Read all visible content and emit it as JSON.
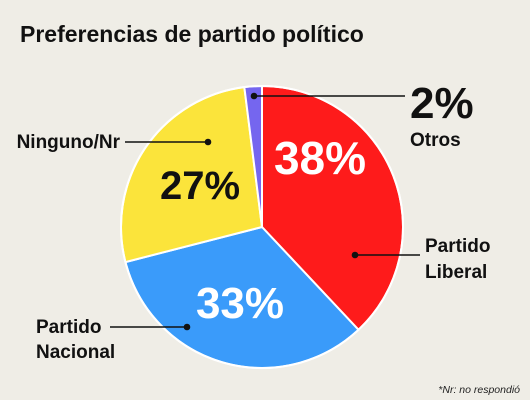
{
  "chart_data": {
    "type": "pie",
    "title": "Preferencias de partido político",
    "slices": [
      {
        "label": "Partido Liberal",
        "value": 38,
        "value_label": "38%",
        "color": "#fe1b1b"
      },
      {
        "label": "Partido Nacional",
        "value": 33,
        "value_label": "33%",
        "color": "#3a9bfa"
      },
      {
        "label": "Ninguno/Nr",
        "value": 27,
        "value_label": "27%",
        "color": "#fbe43b"
      },
      {
        "label": "Otros",
        "value": 2,
        "value_label": "2%",
        "color": "#7566ef"
      }
    ],
    "footnote": "*Nr: no respondió"
  }
}
